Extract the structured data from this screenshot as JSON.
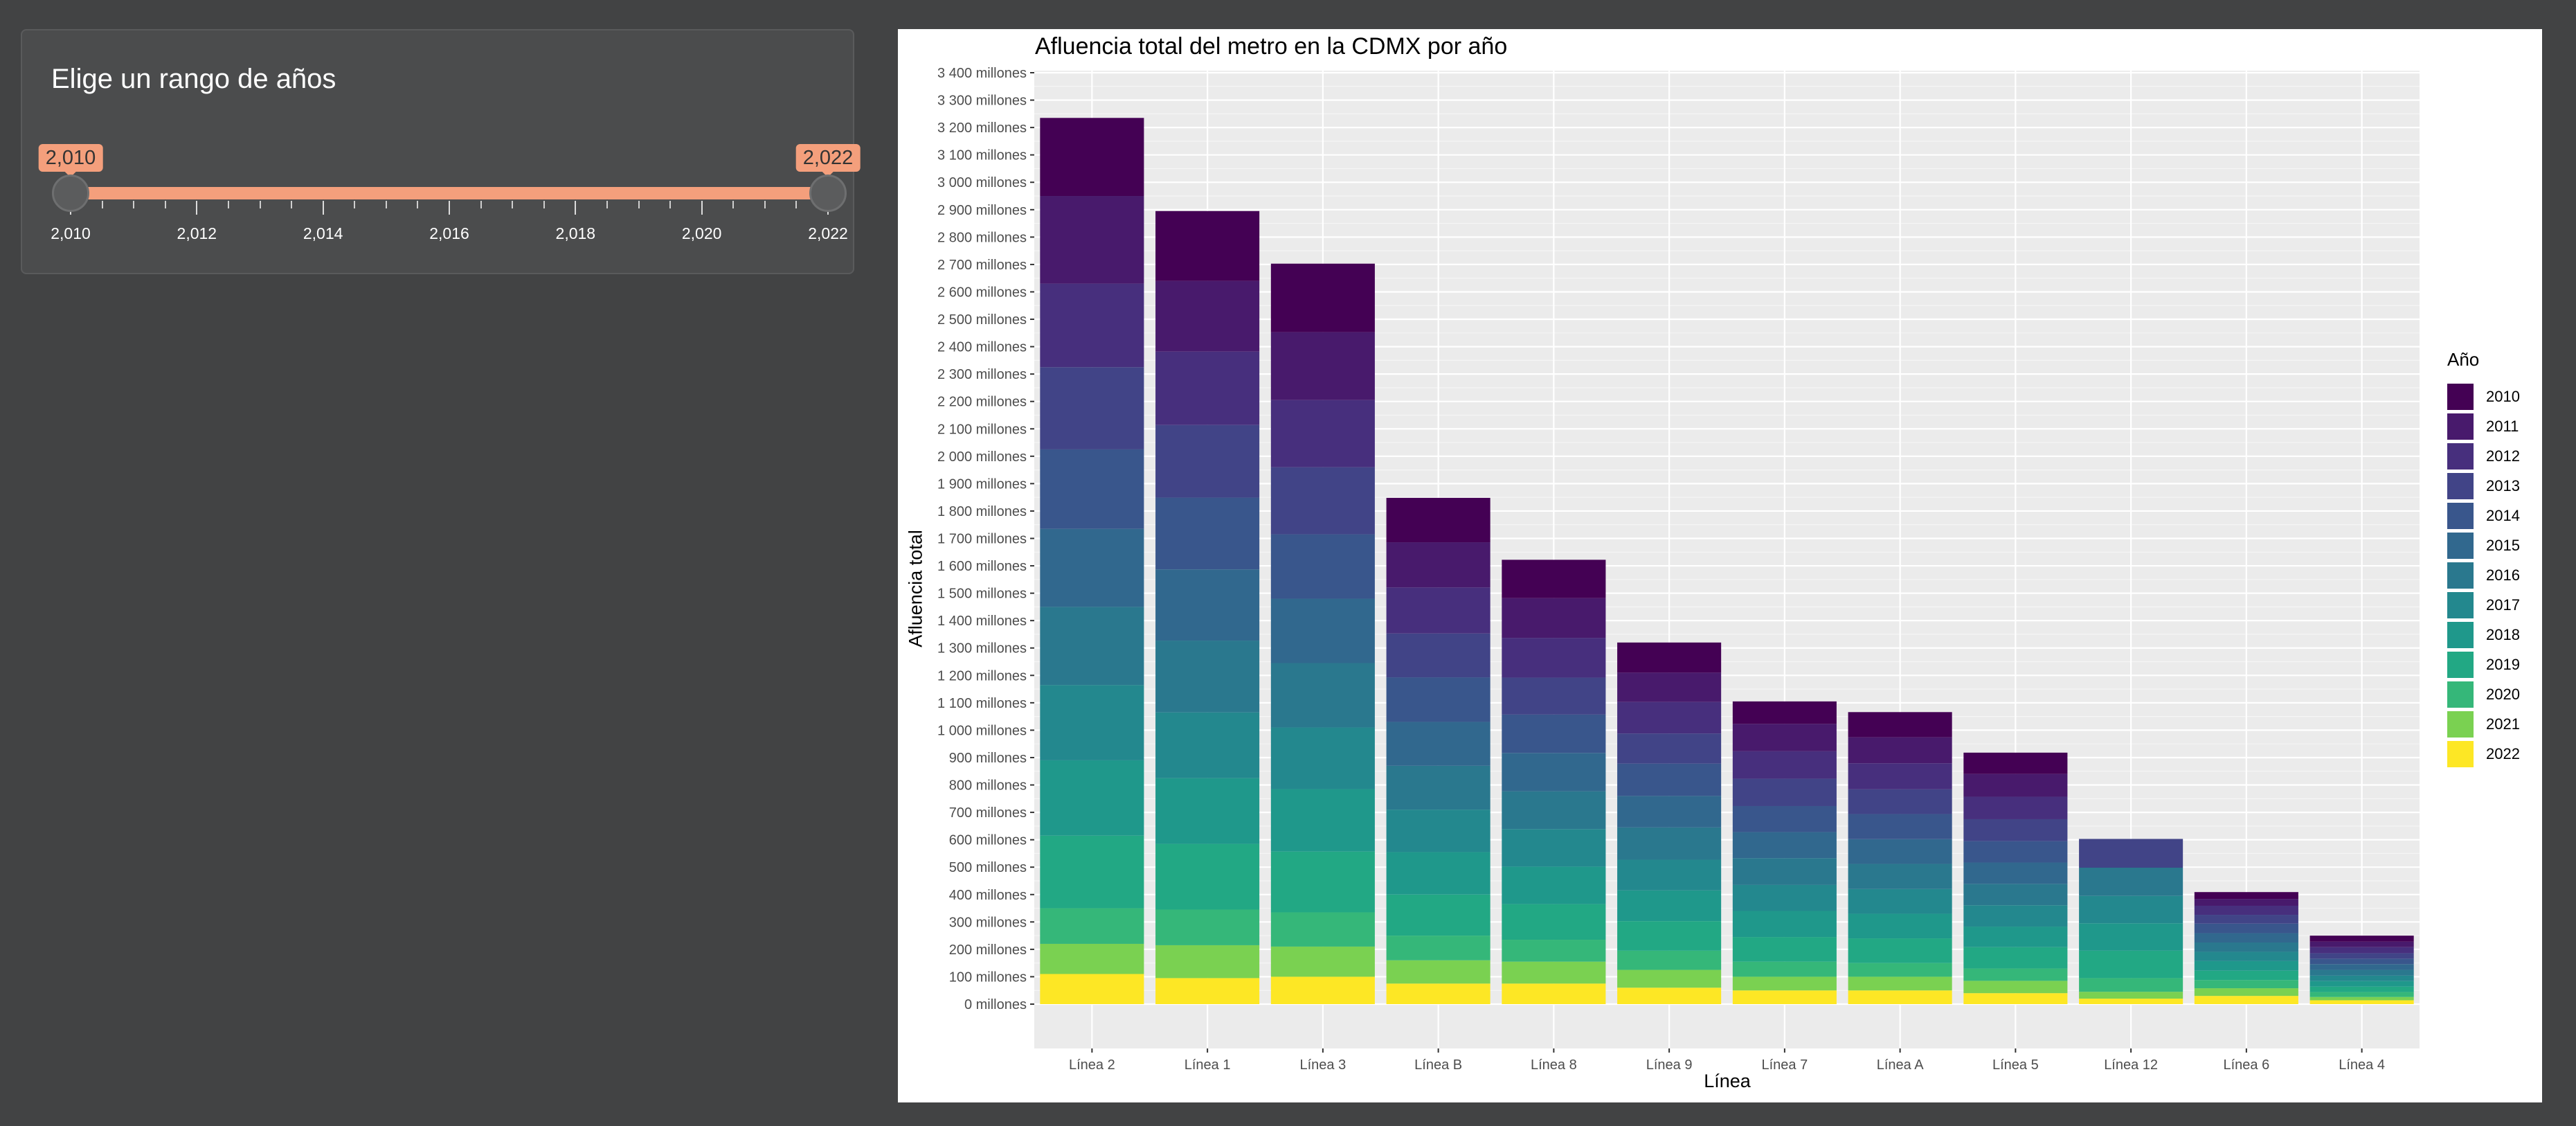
{
  "controls": {
    "range_label": "Elige un rango de años",
    "slider": {
      "min": 2010,
      "max": 2022,
      "low": 2010,
      "high": 2022,
      "low_label": "2,010",
      "high_label": "2,022",
      "tick_labels": [
        "2,010",
        "2,012",
        "2,014",
        "2,016",
        "2,018",
        "2,020",
        "2,022"
      ],
      "accent_color": "#f49f7c"
    }
  },
  "chart_data": {
    "type": "bar",
    "stacked": true,
    "title": "Afluencia total del metro en la CDMX por año",
    "xlabel": "Línea",
    "ylabel": "Afluencia total",
    "ylim": [
      0,
      3400
    ],
    "y_unit": "millones",
    "y_ticks": [
      "0 millones",
      "100 millones",
      "200 millones",
      "300 millones",
      "400 millones",
      "500 millones",
      "600 millones",
      "700 millones",
      "800 millones",
      "900 millones",
      "1 000 millones",
      "1 100 millones",
      "1 200 millones",
      "1 300 millones",
      "1 400 millones",
      "1 500 millones",
      "1 600 millones",
      "1 700 millones",
      "1 800 millones",
      "1 900 millones",
      "2 000 millones",
      "2 100 millones",
      "2 200 millones",
      "2 300 millones",
      "2 400 millones",
      "2 500 millones",
      "2 600 millones",
      "2 700 millones",
      "2 800 millones",
      "2 900 millones",
      "3 000 millones",
      "3 100 millones",
      "3 200 millones",
      "3 300 millones",
      "3 400 millones"
    ],
    "grid": true,
    "legend_title": "Año",
    "legend_position": "right",
    "categories": [
      "Línea 2",
      "Línea 1",
      "Línea 3",
      "Línea B",
      "Línea 8",
      "Línea 9",
      "Línea 7",
      "Línea A",
      "Línea 5",
      "Línea 12",
      "Línea 6",
      "Línea 4"
    ],
    "series": [
      {
        "name": "2010",
        "color": "#440154",
        "values": [
          285,
          255,
          250,
          162,
          140,
          110,
          82,
          92,
          78,
          0,
          25,
          22
        ]
      },
      {
        "name": "2011",
        "color": "#481a6c",
        "values": [
          320,
          258,
          248,
          165,
          145,
          107,
          100,
          95,
          83,
          0,
          25,
          20
        ]
      },
      {
        "name": "2012",
        "color": "#472f7d",
        "values": [
          305,
          268,
          245,
          168,
          145,
          115,
          100,
          95,
          82,
          0,
          33,
          22
        ]
      },
      {
        "name": "2013",
        "color": "#414487",
        "values": [
          300,
          265,
          245,
          160,
          135,
          110,
          100,
          90,
          80,
          105,
          32,
          20
        ]
      },
      {
        "name": "2014",
        "color": "#39568c",
        "values": [
          290,
          262,
          235,
          163,
          140,
          118,
          95,
          92,
          78,
          0,
          35,
          20
        ]
      },
      {
        "name": "2015",
        "color": "#31688e",
        "values": [
          285,
          260,
          235,
          160,
          140,
          115,
          95,
          90,
          78,
          0,
          34,
          21
        ]
      },
      {
        "name": "2016",
        "color": "#2a788e",
        "values": [
          285,
          262,
          235,
          160,
          138,
          118,
          98,
          92,
          78,
          103,
          34,
          21
        ]
      },
      {
        "name": "2017",
        "color": "#23888e",
        "values": [
          275,
          240,
          225,
          155,
          137,
          112,
          95,
          90,
          78,
          100,
          34,
          20
        ]
      },
      {
        "name": "2018",
        "color": "#1f988b",
        "values": [
          275,
          240,
          228,
          155,
          137,
          112,
          95,
          90,
          75,
          100,
          35,
          20
        ]
      },
      {
        "name": "2019",
        "color": "#22a884",
        "values": [
          265,
          240,
          222,
          150,
          130,
          108,
          90,
          90,
          78,
          100,
          34,
          20
        ]
      },
      {
        "name": "2020",
        "color": "#35b779",
        "values": [
          130,
          130,
          125,
          90,
          80,
          70,
          55,
          50,
          45,
          50,
          30,
          18
        ]
      },
      {
        "name": "2021",
        "color": "#7ad151",
        "values": [
          110,
          120,
          110,
          85,
          80,
          65,
          50,
          50,
          45,
          25,
          28,
          12
        ]
      },
      {
        "name": "2022",
        "color": "#fde725",
        "values": [
          110,
          95,
          100,
          75,
          75,
          60,
          50,
          50,
          40,
          20,
          30,
          14
        ]
      }
    ]
  }
}
